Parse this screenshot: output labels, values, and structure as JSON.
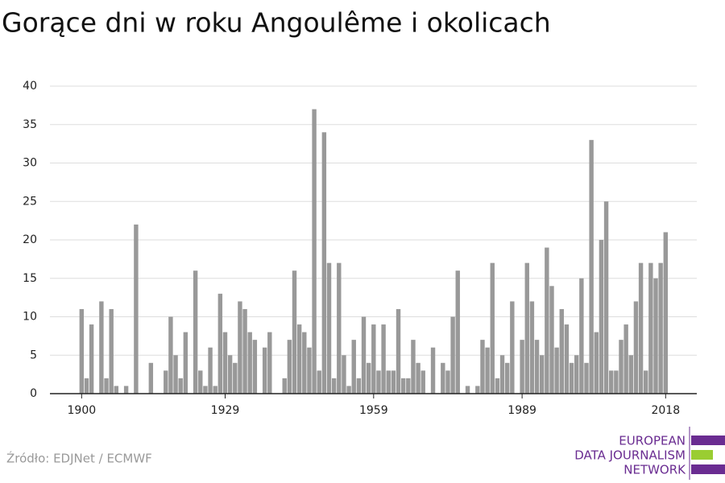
{
  "chart_data": {
    "type": "bar",
    "title": "Gorące dni w roku Angoulême i okolicach",
    "x": [
      1900,
      1901,
      1902,
      1903,
      1904,
      1905,
      1906,
      1907,
      1908,
      1909,
      1910,
      1911,
      1912,
      1913,
      1914,
      1915,
      1916,
      1917,
      1918,
      1919,
      1920,
      1921,
      1922,
      1923,
      1924,
      1925,
      1926,
      1927,
      1928,
      1929,
      1930,
      1931,
      1932,
      1933,
      1934,
      1935,
      1936,
      1937,
      1938,
      1939,
      1940,
      1941,
      1942,
      1943,
      1944,
      1945,
      1946,
      1947,
      1948,
      1949,
      1950,
      1951,
      1952,
      1953,
      1954,
      1955,
      1956,
      1957,
      1958,
      1959,
      1960,
      1961,
      1962,
      1963,
      1964,
      1965,
      1966,
      1967,
      1968,
      1969,
      1970,
      1971,
      1972,
      1973,
      1974,
      1975,
      1976,
      1977,
      1978,
      1979,
      1980,
      1981,
      1982,
      1983,
      1984,
      1985,
      1986,
      1987,
      1988,
      1989,
      1990,
      1991,
      1992,
      1993,
      1994,
      1995,
      1996,
      1997,
      1998,
      1999,
      2000,
      2001,
      2002,
      2003,
      2004,
      2005,
      2006,
      2007,
      2008,
      2009,
      2010,
      2011,
      2012,
      2013,
      2014,
      2015,
      2016,
      2017,
      2018
    ],
    "values": [
      11,
      2,
      9,
      0,
      12,
      2,
      11,
      1,
      0,
      1,
      0,
      22,
      0,
      0,
      4,
      0,
      0,
      3,
      10,
      5,
      2,
      8,
      0,
      16,
      3,
      1,
      6,
      1,
      13,
      8,
      5,
      4,
      12,
      11,
      8,
      7,
      0,
      6,
      8,
      0,
      0,
      2,
      7,
      16,
      9,
      8,
      6,
      37,
      3,
      34,
      17,
      2,
      17,
      5,
      1,
      7,
      2,
      10,
      4,
      9,
      3,
      9,
      3,
      3,
      11,
      2,
      2,
      7,
      4,
      3,
      0,
      6,
      0,
      4,
      3,
      10,
      16,
      0,
      1,
      0,
      1,
      7,
      6,
      17,
      2,
      5,
      4,
      12,
      0,
      7,
      17,
      12,
      7,
      5,
      19,
      14,
      6,
      11,
      9,
      4,
      5,
      15,
      4,
      33,
      8,
      20,
      25,
      3,
      3,
      7,
      9,
      5,
      12,
      17,
      3,
      17,
      15,
      17,
      21
    ],
    "color": "#999999",
    "xlim": [
      1893.6,
      2024.3
    ],
    "xticks": [
      1900,
      1929,
      1959,
      1989,
      2018
    ],
    "ylim": [
      0,
      40
    ],
    "yticks": [
      0,
      5,
      10,
      15,
      20,
      25,
      30,
      35,
      40
    ],
    "grid": true,
    "source": "Źródło: EDJNet / ECMWF",
    "logo": [
      "EUROPEAN",
      "DATA JOURNALISM",
      "NETWORK"
    ]
  }
}
